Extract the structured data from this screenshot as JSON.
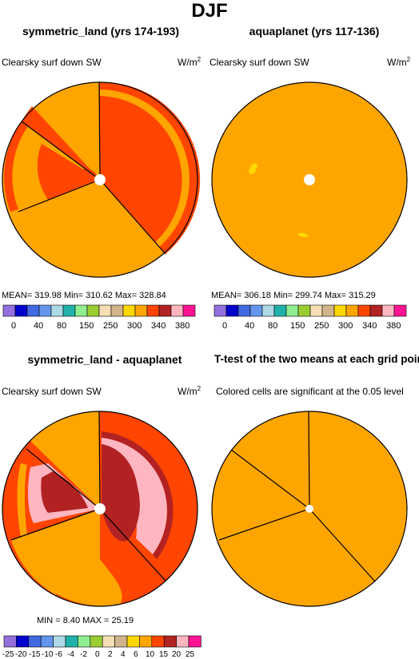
{
  "figure_title": "DJF",
  "palette": {
    "c_purple": "#9370db",
    "c_blue": "#0000cd",
    "c_royal": "#4169e1",
    "c_cornflower": "#6495ed",
    "c_lightblue": "#add8e6",
    "c_teal": "#20b2aa",
    "c_lightgreen": "#90ee90",
    "c_olive": "#9acd32",
    "c_wheat": "#f5deb3",
    "c_tan": "#d2b48c",
    "c_gold": "#ffd700",
    "c_orange": "#ffa500",
    "c_orangered": "#ff4500",
    "c_firebrick": "#b22222",
    "c_pink": "#ffb6c1",
    "c_magenta": "#ff1493"
  },
  "panels": {
    "p1": {
      "title": "symmetric_land (yrs 174-193)",
      "left_label": "Clearsky surf down SW",
      "unit": "W/m",
      "unit_exp": "2",
      "stats": "MEAN=  319.98    Min=  310.62    Max=  328.84",
      "colorbar_ticks": [
        "0",
        "40",
        "80",
        "150",
        "250",
        "300",
        "340",
        "380"
      ]
    },
    "p2": {
      "title": "aquaplanet (yrs 117-136)",
      "left_label": "Clearsky surf down SW",
      "unit": "W/m",
      "unit_exp": "2",
      "stats": "MEAN=  306.18    Min=  299.74    Max=  315.29",
      "colorbar_ticks": [
        "0",
        "40",
        "80",
        "150",
        "250",
        "300",
        "340",
        "380"
      ]
    },
    "p3": {
      "title": "symmetric_land - aquaplanet",
      "left_label": "Clearsky surf down SW",
      "unit": "W/m",
      "unit_exp": "2",
      "stats": "MIN =    8.40  MAX =   25.19",
      "colorbar_ticks": [
        "-25",
        "-20",
        "-15",
        "-10",
        "-6",
        "-4",
        "-2",
        "0",
        "2",
        "4",
        "6",
        "10",
        "15",
        "20",
        "25"
      ]
    },
    "p4": {
      "title": "T-test of the two means at each grid point",
      "left_label": "Colored cells are significant at the 0.05 level"
    }
  },
  "chart_data": [
    {
      "type": "heatmap",
      "title": "symmetric_land (yrs 174-193)",
      "variable": "Clearsky surf down SW",
      "units": "W/m2",
      "projection": "polar",
      "stats": {
        "mean": 319.98,
        "min": 310.62,
        "max": 328.84
      },
      "colorbar_levels": [
        0,
        40,
        80,
        150,
        250,
        300,
        340,
        380
      ],
      "dominant_range": [
        "300-340",
        "340-360"
      ]
    },
    {
      "type": "heatmap",
      "title": "aquaplanet (yrs 117-136)",
      "variable": "Clearsky surf down SW",
      "units": "W/m2",
      "projection": "polar",
      "stats": {
        "mean": 306.18,
        "min": 299.74,
        "max": 315.29
      },
      "colorbar_levels": [
        0,
        40,
        80,
        150,
        250,
        300,
        340,
        380
      ],
      "dominant_range": [
        "300-340"
      ]
    },
    {
      "type": "heatmap",
      "title": "symmetric_land - aquaplanet",
      "variable": "Clearsky surf down SW",
      "units": "W/m2",
      "projection": "polar",
      "stats": {
        "min": 8.4,
        "max": 25.19
      },
      "colorbar_levels": [
        -25,
        -20,
        -15,
        -10,
        -6,
        -4,
        -2,
        0,
        2,
        4,
        6,
        10,
        15,
        20,
        25
      ]
    },
    {
      "type": "heatmap",
      "title": "T-test of the two means at each grid point",
      "note": "Colored cells are significant at the 0.05 level",
      "projection": "polar"
    }
  ]
}
